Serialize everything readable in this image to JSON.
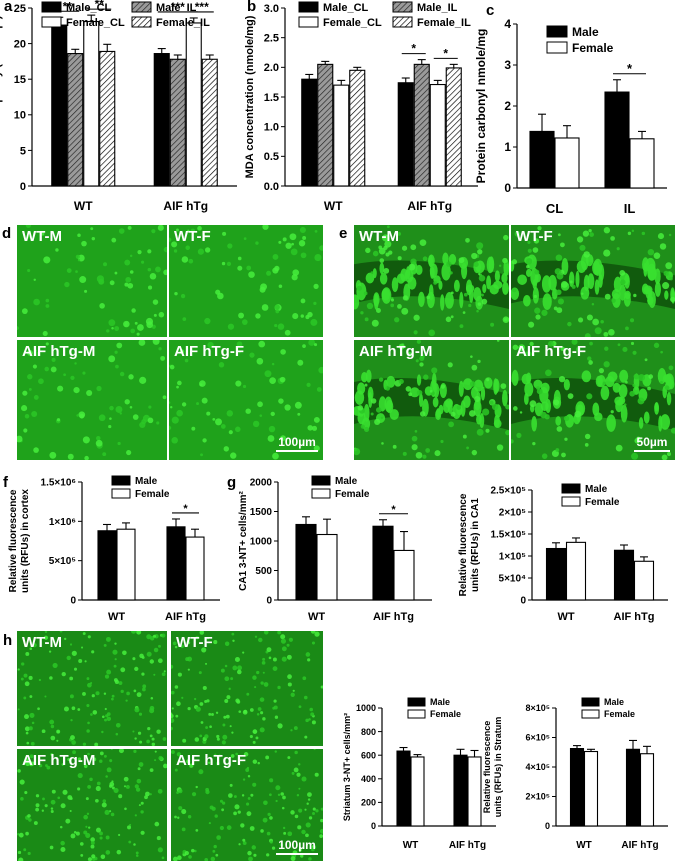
{
  "panels": {
    "a": "a",
    "b": "b",
    "c": "c",
    "d": "d",
    "e": "e",
    "f": "f",
    "g": "g",
    "h": "h"
  },
  "colors": {
    "fluor": "#2fd82a",
    "fluor_dark": "#0d4a0a"
  },
  "micrographs": {
    "d": {
      "labels": [
        "WT-M",
        "WT-F",
        "AIF hTg-M",
        "AIF hTg-F"
      ],
      "scale": "100µm"
    },
    "e": {
      "labels": [
        "WT-M",
        "WT-F",
        "AIF hTg-M",
        "AIF hTg-F"
      ],
      "scale": "50µm"
    },
    "h": {
      "labels": [
        "WT-M",
        "WT-F",
        "AIF hTg-M",
        "AIF hTg-F"
      ],
      "scale": "100µm"
    }
  },
  "chart_data": [
    {
      "id": "a",
      "type": "bar",
      "ylabel": "Antioxidant capacity (nmole/µl)",
      "ylim": [
        0,
        25
      ],
      "yticks": [
        "0",
        "5",
        "10",
        "15",
        "20",
        "25"
      ],
      "ytick_values": [
        0,
        5,
        10,
        15,
        20,
        25
      ],
      "categories": [
        "WT",
        "AIF hTg"
      ],
      "legend": "top-left",
      "series": [
        {
          "name": "Male_CL",
          "fill": "solid",
          "values": [
            22.6,
            18.6
          ],
          "errors": [
            1.1,
            0.7
          ]
        },
        {
          "name": "Male_IL",
          "fill": "gray-hatch",
          "values": [
            18.6,
            17.8
          ],
          "errors": [
            0.6,
            0.6
          ]
        },
        {
          "name": "Female_CL",
          "fill": "white",
          "values": [
            23.1,
            22.9
          ],
          "errors": [
            0.9,
            0.7
          ]
        },
        {
          "name": "Female_IL",
          "fill": "white-hatch",
          "values": [
            18.9,
            17.8
          ],
          "errors": [
            1.0,
            0.6
          ]
        }
      ],
      "significance": [
        {
          "label": "**",
          "from": [
            0,
            0
          ],
          "to": [
            0,
            1
          ]
        },
        {
          "label": "**",
          "from": [
            0,
            2
          ],
          "to": [
            0,
            3
          ]
        },
        {
          "label": "***",
          "from": [
            1,
            0
          ],
          "to": [
            1,
            2
          ]
        },
        {
          "label": "***",
          "from": [
            1,
            2
          ],
          "to": [
            1,
            3
          ]
        }
      ]
    },
    {
      "id": "b",
      "type": "bar",
      "ylabel": "MDA concentration (nmole/mg)",
      "ylim": [
        0,
        3.0
      ],
      "yticks": [
        "0.0",
        "0.5",
        "1.0",
        "1.5",
        "2.0",
        "2.5",
        "3.0"
      ],
      "ytick_values": [
        0,
        0.5,
        1.0,
        1.5,
        2.0,
        2.5,
        3.0
      ],
      "categories": [
        "WT",
        "AIF hTg"
      ],
      "legend": "top",
      "series": [
        {
          "name": "Male_CL",
          "fill": "solid",
          "values": [
            1.8,
            1.74
          ],
          "errors": [
            0.08,
            0.08
          ]
        },
        {
          "name": "Male_IL",
          "fill": "gray-hatch",
          "values": [
            2.05,
            2.05
          ],
          "errors": [
            0.05,
            0.08
          ]
        },
        {
          "name": "Female_CL",
          "fill": "white",
          "values": [
            1.7,
            1.71
          ],
          "errors": [
            0.08,
            0.07
          ]
        },
        {
          "name": "Female_IL",
          "fill": "white-hatch",
          "values": [
            1.95,
            1.99
          ],
          "errors": [
            0.05,
            0.06
          ]
        }
      ],
      "significance": [
        {
          "label": "*",
          "from": [
            1,
            0
          ],
          "to": [
            1,
            1
          ]
        },
        {
          "label": "*",
          "from": [
            1,
            2
          ],
          "to": [
            1,
            3
          ]
        }
      ]
    },
    {
      "id": "c",
      "type": "bar",
      "ylabel": "Protein carbonyl nmole/mg",
      "ylim": [
        0,
        4
      ],
      "yticks": [
        "0",
        "1",
        "2",
        "3",
        "4"
      ],
      "ytick_values": [
        0,
        1,
        2,
        3,
        4
      ],
      "categories": [
        "CL",
        "IL"
      ],
      "legend": "top-right",
      "series": [
        {
          "name": "Male",
          "fill": "solid",
          "values": [
            1.38,
            2.34
          ],
          "errors": [
            0.42,
            0.3
          ]
        },
        {
          "name": "Female",
          "fill": "white",
          "values": [
            1.22,
            1.2
          ],
          "errors": [
            0.3,
            0.18
          ]
        }
      ],
      "significance": [
        {
          "label": "*",
          "from": [
            1,
            0
          ],
          "to": [
            1,
            1
          ]
        }
      ]
    },
    {
      "id": "f",
      "type": "bar",
      "ylabel": "Relative fluorescence units (RFUs) in cortex",
      "ylim": [
        0,
        1500000
      ],
      "yticks": [
        "0",
        "5×10⁵",
        "1×10⁶",
        "1.5×10⁶"
      ],
      "ytick_values": [
        0,
        500000,
        1000000,
        1500000
      ],
      "categories": [
        "WT",
        "AIF hTg"
      ],
      "legend": "top",
      "series": [
        {
          "name": "Male",
          "fill": "solid",
          "values": [
            880000,
            930000
          ],
          "errors": [
            80000,
            100000
          ]
        },
        {
          "name": "Female",
          "fill": "white",
          "values": [
            900000,
            800000
          ],
          "errors": [
            80000,
            100000
          ]
        }
      ],
      "significance": [
        {
          "label": "*",
          "from": [
            1,
            0
          ],
          "to": [
            1,
            1
          ]
        }
      ]
    },
    {
      "id": "g",
      "type": "bar",
      "ylabel": "CA1 3-NT+ cells/mm²",
      "ylim": [
        0,
        2000
      ],
      "yticks": [
        "0",
        "500",
        "1000",
        "1500",
        "2000"
      ],
      "ytick_values": [
        0,
        500,
        1000,
        1500,
        2000
      ],
      "categories": [
        "WT",
        "AIF hTg"
      ],
      "legend": "top",
      "series": [
        {
          "name": "Male",
          "fill": "solid",
          "values": [
            1280,
            1250
          ],
          "errors": [
            130,
            110
          ]
        },
        {
          "name": "Female",
          "fill": "white",
          "values": [
            1110,
            840
          ],
          "errors": [
            260,
            320
          ]
        }
      ],
      "significance": [
        {
          "label": "*",
          "from": [
            1,
            0
          ],
          "to": [
            1,
            1
          ]
        }
      ]
    },
    {
      "id": "g2",
      "type": "bar",
      "ylabel": "Relative fluorescence units (RFUs) in CA1",
      "ylim": [
        0,
        250000
      ],
      "yticks": [
        "0",
        "5×10⁴",
        "1×10⁵",
        "1.5×10⁵",
        "2×10⁵",
        "2.5×10⁵"
      ],
      "ytick_values": [
        0,
        50000,
        100000,
        150000,
        200000,
        250000
      ],
      "categories": [
        "WT",
        "AIF hTg"
      ],
      "legend": "top",
      "series": [
        {
          "name": "Male",
          "fill": "solid",
          "values": [
            117000,
            113000
          ],
          "errors": [
            13000,
            12000
          ]
        },
        {
          "name": "Female",
          "fill": "white",
          "values": [
            131000,
            88000
          ],
          "errors": [
            10000,
            10000
          ]
        }
      ],
      "significance": []
    },
    {
      "id": "h2",
      "type": "bar",
      "ylabel": "Striatum 3-NT+ cells/mm²",
      "ylim": [
        0,
        1000
      ],
      "yticks": [
        "0",
        "200",
        "400",
        "600",
        "800",
        "1000"
      ],
      "ytick_values": [
        0,
        200,
        400,
        600,
        800,
        1000
      ],
      "categories": [
        "WT",
        "AIF hTg"
      ],
      "legend": "top",
      "series": [
        {
          "name": "Male",
          "fill": "solid",
          "values": [
            635,
            600
          ],
          "errors": [
            30,
            50
          ]
        },
        {
          "name": "Female",
          "fill": "white",
          "values": [
            585,
            585
          ],
          "errors": [
            20,
            55
          ]
        }
      ],
      "significance": []
    },
    {
      "id": "h3",
      "type": "bar",
      "ylabel": "Relative fluorescence units (RFUs) in Stratum",
      "ylim": [
        0,
        800000
      ],
      "yticks": [
        "0",
        "2×10⁵",
        "4×10⁵",
        "6×10⁵",
        "8×10⁵"
      ],
      "ytick_values": [
        0,
        200000,
        400000,
        600000,
        800000
      ],
      "categories": [
        "WT",
        "AIF hTg"
      ],
      "legend": "top",
      "series": [
        {
          "name": "Male",
          "fill": "solid",
          "values": [
            525000,
            520000
          ],
          "errors": [
            20000,
            60000
          ]
        },
        {
          "name": "Female",
          "fill": "white",
          "values": [
            505000,
            490000
          ],
          "errors": [
            15000,
            50000
          ]
        }
      ],
      "significance": []
    }
  ]
}
